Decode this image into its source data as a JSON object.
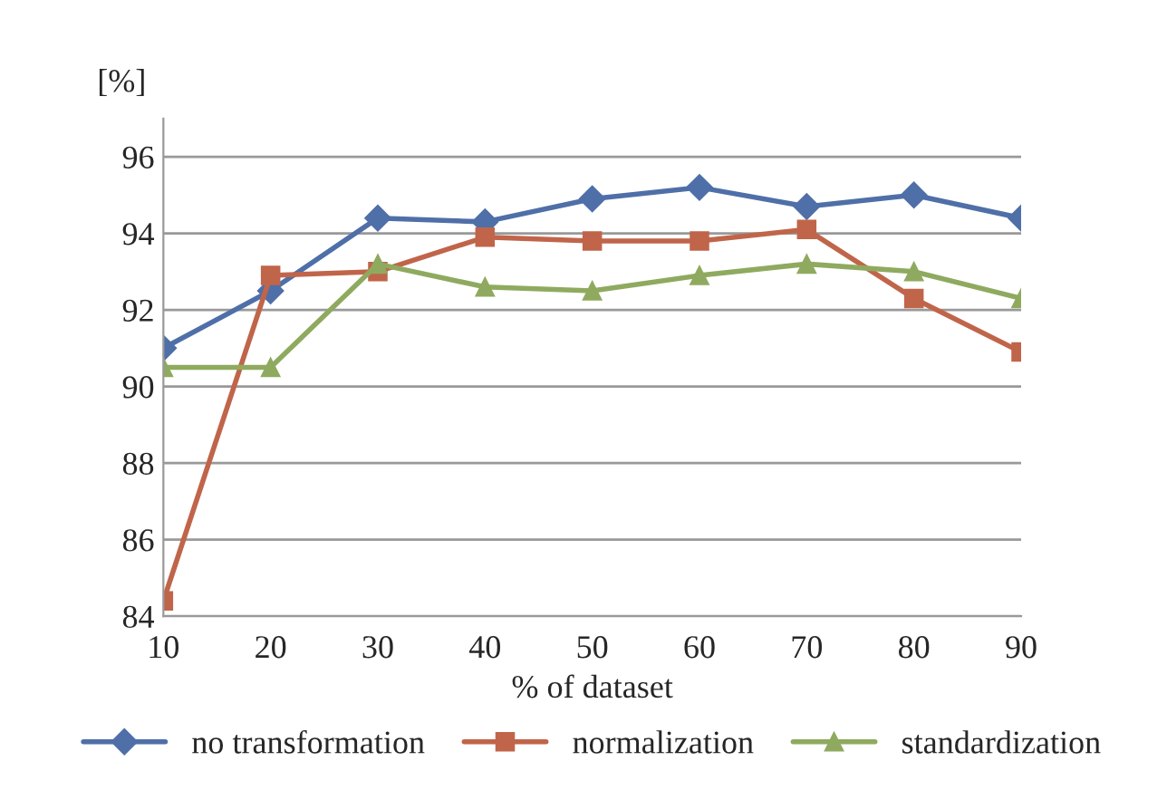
{
  "chart_data": {
    "type": "line",
    "xlabel": "% of dataset",
    "ylabel": "[%]",
    "x": [
      10,
      20,
      30,
      40,
      50,
      60,
      70,
      80,
      90
    ],
    "series": [
      {
        "name": "no transformation",
        "color": "#4f6fa8",
        "marker": "diamond",
        "values": [
          91.0,
          92.5,
          94.4,
          94.3,
          94.9,
          95.2,
          94.7,
          95.0,
          94.4
        ]
      },
      {
        "name": "normalization",
        "color": "#c0654a",
        "marker": "square",
        "values": [
          84.4,
          92.9,
          93.0,
          93.9,
          93.8,
          93.8,
          94.1,
          92.3,
          90.9
        ]
      },
      {
        "name": "standardization",
        "color": "#8faa5f",
        "marker": "triangle",
        "values": [
          90.5,
          90.5,
          93.2,
          92.6,
          92.5,
          92.9,
          93.2,
          93.0,
          92.3
        ]
      }
    ],
    "xlim": [
      10,
      90
    ],
    "xticks": [
      10,
      20,
      30,
      40,
      50,
      60,
      70,
      80,
      90
    ],
    "ylim": [
      84,
      97
    ],
    "yticks": [
      84,
      86,
      88,
      90,
      92,
      94,
      96
    ],
    "grid": "y",
    "legend": "bottom",
    "line_style": "solid"
  }
}
